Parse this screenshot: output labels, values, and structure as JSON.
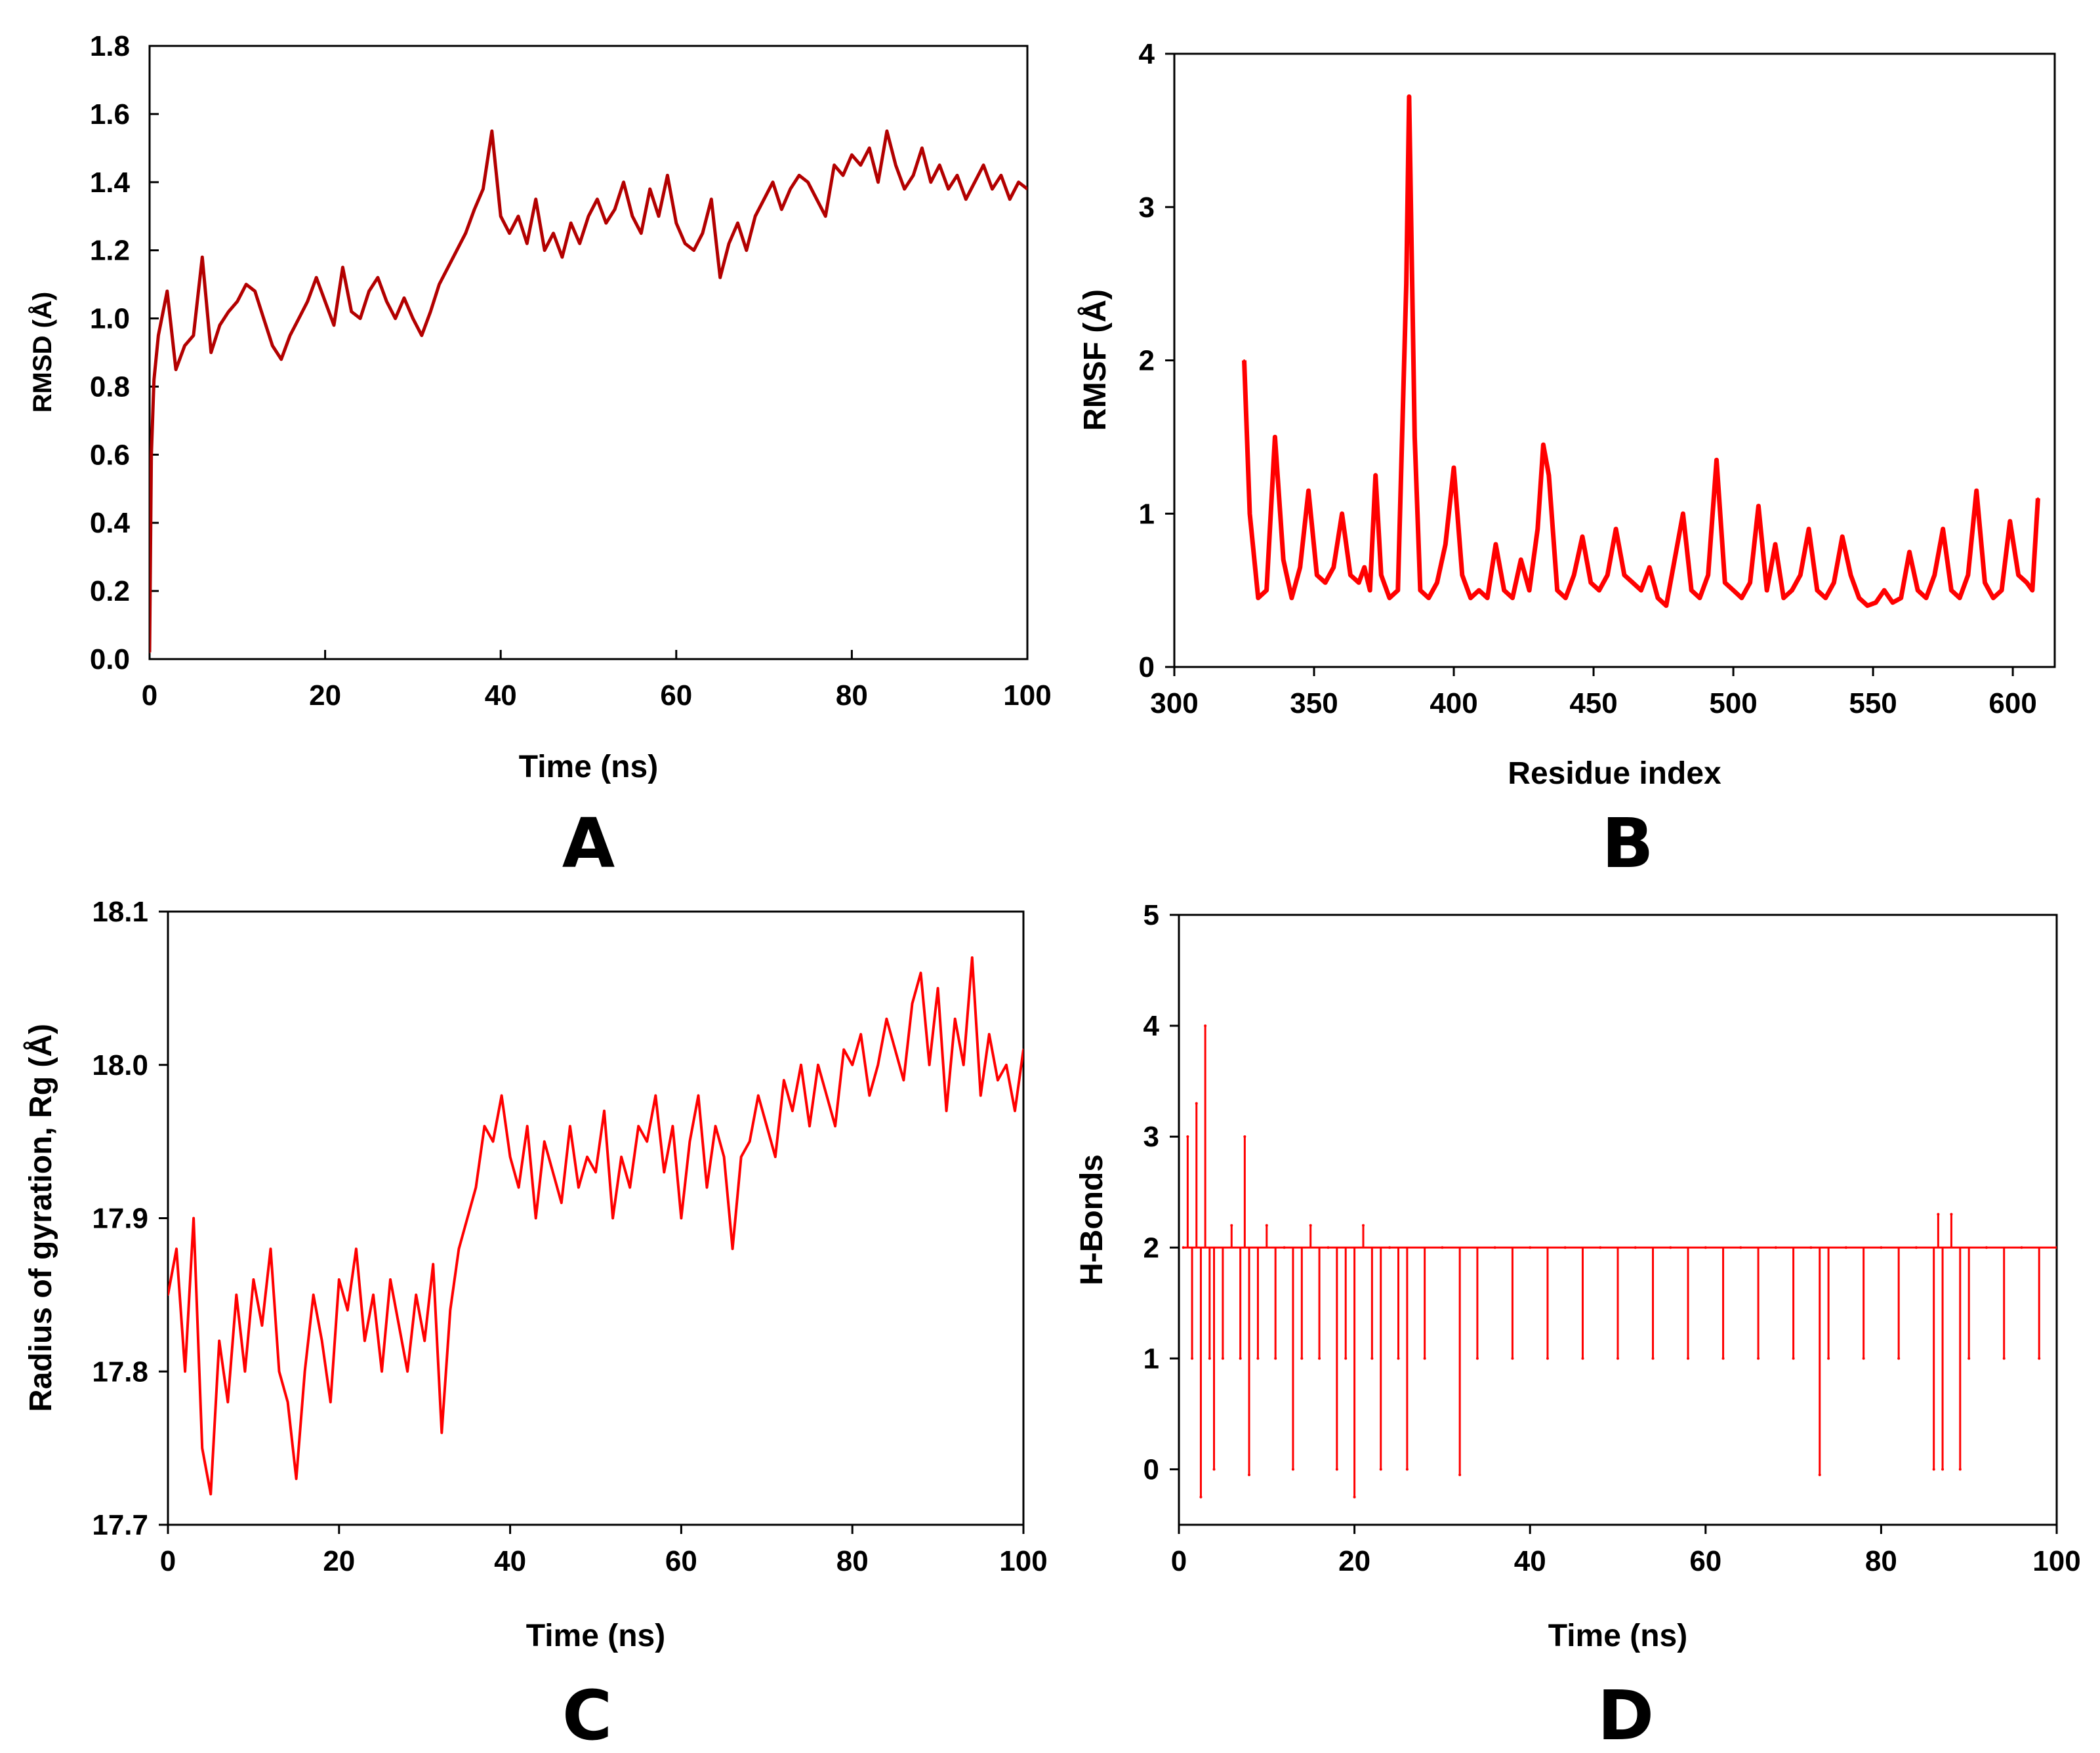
{
  "figure": {
    "panels": [
      "A",
      "B",
      "C",
      "D"
    ],
    "colors": {
      "rmsd": "#b30000",
      "series": "#ff0000",
      "axis": "#000000",
      "background": "#ffffff"
    }
  },
  "chart_data": [
    {
      "panel": "A",
      "type": "line",
      "title": "",
      "xlabel": "Time (ns)",
      "ylabel": "RMSD (Å)",
      "xlim": [
        0,
        100
      ],
      "ylim": [
        0.0,
        1.8
      ],
      "xticks": [
        "0",
        "20",
        "40",
        "60",
        "80",
        "100"
      ],
      "yticks": [
        "0.0",
        "0.2",
        "0.4",
        "0.6",
        "0.8",
        "1.0",
        "1.2",
        "1.4",
        "1.6",
        "1.8"
      ],
      "grid": false,
      "series": [
        {
          "name": "RMSD",
          "color": "#b30000",
          "x": [
            0,
            0.2,
            0.5,
            1,
            2,
            3,
            4,
            5,
            6,
            7,
            8,
            9,
            10,
            11,
            12,
            13,
            14,
            15,
            16,
            17,
            18,
            19,
            20,
            21,
            22,
            23,
            24,
            25,
            26,
            27,
            28,
            29,
            30,
            31,
            32,
            33,
            34,
            35,
            36,
            37,
            38,
            39,
            40,
            41,
            42,
            43,
            44,
            45,
            46,
            47,
            48,
            49,
            50,
            51,
            52,
            53,
            54,
            55,
            56,
            57,
            58,
            59,
            60,
            61,
            62,
            63,
            64,
            65,
            66,
            67,
            68,
            69,
            70,
            71,
            72,
            73,
            74,
            75,
            76,
            77,
            78,
            79,
            80,
            81,
            82,
            83,
            84,
            85,
            86,
            87,
            88,
            89,
            90,
            91,
            92,
            93,
            94,
            95,
            96,
            97,
            98,
            99,
            100
          ],
          "values": [
            0.02,
            0.6,
            0.82,
            0.95,
            1.08,
            0.85,
            0.92,
            0.95,
            1.18,
            0.9,
            0.98,
            1.02,
            1.05,
            1.1,
            1.08,
            1.0,
            0.92,
            0.88,
            0.95,
            1.0,
            1.05,
            1.12,
            1.05,
            0.98,
            1.15,
            1.02,
            1.0,
            1.08,
            1.12,
            1.05,
            1.0,
            1.06,
            1.0,
            0.95,
            1.02,
            1.1,
            1.15,
            1.2,
            1.25,
            1.32,
            1.38,
            1.55,
            1.3,
            1.25,
            1.3,
            1.22,
            1.35,
            1.2,
            1.25,
            1.18,
            1.28,
            1.22,
            1.3,
            1.35,
            1.28,
            1.32,
            1.4,
            1.3,
            1.25,
            1.38,
            1.3,
            1.42,
            1.28,
            1.22,
            1.2,
            1.25,
            1.35,
            1.12,
            1.22,
            1.28,
            1.2,
            1.3,
            1.35,
            1.4,
            1.32,
            1.38,
            1.42,
            1.4,
            1.35,
            1.3,
            1.45,
            1.42,
            1.48,
            1.45,
            1.5,
            1.4,
            1.55,
            1.45,
            1.38,
            1.42,
            1.5,
            1.4,
            1.45,
            1.38,
            1.42,
            1.35,
            1.4,
            1.45,
            1.38,
            1.42,
            1.35,
            1.4,
            1.38
          ]
        }
      ]
    },
    {
      "panel": "B",
      "type": "line",
      "title": "",
      "xlabel": "Residue index",
      "ylabel": "RMSF (Å)",
      "xlim": [
        300,
        615
      ],
      "ylim": [
        0,
        4
      ],
      "xticks": [
        "300",
        "350",
        "400",
        "450",
        "500",
        "550",
        "600"
      ],
      "yticks": [
        "0",
        "1",
        "2",
        "3",
        "4"
      ],
      "grid": false,
      "series": [
        {
          "name": "RMSF",
          "color": "#ff0000",
          "x": [
            325,
            327,
            330,
            333,
            336,
            339,
            342,
            345,
            348,
            351,
            354,
            357,
            360,
            363,
            366,
            368,
            370,
            372,
            374,
            377,
            380,
            383,
            384,
            386,
            388,
            391,
            394,
            397,
            400,
            403,
            406,
            409,
            412,
            415,
            418,
            421,
            424,
            427,
            430,
            432,
            434,
            437,
            440,
            443,
            446,
            449,
            452,
            455,
            458,
            461,
            464,
            467,
            470,
            473,
            476,
            479,
            482,
            485,
            488,
            491,
            494,
            497,
            500,
            503,
            506,
            509,
            512,
            515,
            518,
            521,
            524,
            527,
            530,
            533,
            536,
            539,
            542,
            545,
            548,
            551,
            554,
            557,
            560,
            563,
            566,
            569,
            572,
            575,
            578,
            581,
            584,
            587,
            590,
            593,
            596,
            599,
            602,
            605,
            607,
            609
          ],
          "values": [
            2.0,
            1.0,
            0.45,
            0.5,
            1.5,
            0.7,
            0.45,
            0.65,
            1.15,
            0.6,
            0.55,
            0.65,
            1.0,
            0.6,
            0.55,
            0.65,
            0.5,
            1.25,
            0.6,
            0.45,
            0.5,
            2.5,
            3.72,
            1.5,
            0.5,
            0.45,
            0.55,
            0.8,
            1.3,
            0.6,
            0.45,
            0.5,
            0.45,
            0.8,
            0.5,
            0.45,
            0.7,
            0.5,
            0.9,
            1.45,
            1.25,
            0.5,
            0.45,
            0.6,
            0.85,
            0.55,
            0.5,
            0.6,
            0.9,
            0.6,
            0.55,
            0.5,
            0.65,
            0.45,
            0.4,
            0.7,
            1.0,
            0.5,
            0.45,
            0.6,
            1.35,
            0.55,
            0.5,
            0.45,
            0.55,
            1.05,
            0.5,
            0.8,
            0.45,
            0.5,
            0.6,
            0.9,
            0.5,
            0.45,
            0.55,
            0.85,
            0.6,
            0.45,
            0.4,
            0.42,
            0.5,
            0.42,
            0.45,
            0.75,
            0.5,
            0.45,
            0.6,
            0.9,
            0.5,
            0.45,
            0.6,
            1.15,
            0.55,
            0.45,
            0.5,
            0.95,
            0.6,
            0.55,
            0.5,
            1.1
          ]
        }
      ]
    },
    {
      "panel": "C",
      "type": "line",
      "title": "",
      "xlabel": "Time (ns)",
      "ylabel": "Radius of gyration, Rg (Å)",
      "xlim": [
        0,
        100
      ],
      "ylim": [
        17.7,
        18.1
      ],
      "xticks": [
        "0",
        "20",
        "40",
        "60",
        "80",
        "100"
      ],
      "yticks": [
        "17.7",
        "17.8",
        "17.9",
        "18.0",
        "18.1"
      ],
      "grid": false,
      "series": [
        {
          "name": "Rg",
          "color": "#ff0000",
          "x": [
            0,
            1,
            2,
            3,
            4,
            5,
            6,
            7,
            8,
            9,
            10,
            11,
            12,
            13,
            14,
            15,
            16,
            17,
            18,
            19,
            20,
            21,
            22,
            23,
            24,
            25,
            26,
            27,
            28,
            29,
            30,
            31,
            32,
            33,
            34,
            35,
            36,
            37,
            38,
            39,
            40,
            41,
            42,
            43,
            44,
            45,
            46,
            47,
            48,
            49,
            50,
            51,
            52,
            53,
            54,
            55,
            56,
            57,
            58,
            59,
            60,
            61,
            62,
            63,
            64,
            65,
            66,
            67,
            68,
            69,
            70,
            71,
            72,
            73,
            74,
            75,
            76,
            77,
            78,
            79,
            80,
            81,
            82,
            83,
            84,
            85,
            86,
            87,
            88,
            89,
            90,
            91,
            92,
            93,
            94,
            95,
            96,
            97,
            98,
            99,
            100
          ],
          "values": [
            17.85,
            17.88,
            17.8,
            17.9,
            17.75,
            17.72,
            17.82,
            17.78,
            17.85,
            17.8,
            17.86,
            17.83,
            17.88,
            17.8,
            17.78,
            17.73,
            17.8,
            17.85,
            17.82,
            17.78,
            17.86,
            17.84,
            17.88,
            17.82,
            17.85,
            17.8,
            17.86,
            17.83,
            17.8,
            17.85,
            17.82,
            17.87,
            17.76,
            17.84,
            17.88,
            17.9,
            17.92,
            17.96,
            17.95,
            17.98,
            17.94,
            17.92,
            17.96,
            17.9,
            17.95,
            17.93,
            17.91,
            17.96,
            17.92,
            17.94,
            17.93,
            17.97,
            17.9,
            17.94,
            17.92,
            17.96,
            17.95,
            17.98,
            17.93,
            17.96,
            17.9,
            17.95,
            17.98,
            17.92,
            17.96,
            17.94,
            17.88,
            17.94,
            17.95,
            17.98,
            17.96,
            17.94,
            17.99,
            17.97,
            18.0,
            17.96,
            18.0,
            17.98,
            17.96,
            18.01,
            18.0,
            18.02,
            17.98,
            18.0,
            18.03,
            18.01,
            17.99,
            18.04,
            18.06,
            18.0,
            18.05,
            17.97,
            18.03,
            18.0,
            18.07,
            17.98,
            18.02,
            17.99,
            18.0,
            17.97,
            18.01
          ]
        }
      ]
    },
    {
      "panel": "D",
      "type": "line",
      "title": "",
      "xlabel": "Time (ns)",
      "ylabel": "H-Bonds",
      "xlim": [
        0,
        100
      ],
      "ylim": [
        -0.5,
        5
      ],
      "xticks": [
        "0",
        "20",
        "40",
        "60",
        "80",
        "100"
      ],
      "yticks": [
        "0",
        "1",
        "2",
        "3",
        "4",
        "5"
      ],
      "grid": false,
      "baseline": 2,
      "series": [
        {
          "name": "H-Bonds",
          "color": "#ff0000",
          "x": [
            0.5,
            1,
            1.5,
            2,
            2.5,
            3,
            3.5,
            4,
            5,
            6,
            7,
            7.5,
            8,
            9,
            10,
            11,
            12,
            13,
            14,
            15,
            16,
            17,
            18,
            19,
            20,
            21,
            22,
            23,
            24,
            25,
            26,
            28,
            30,
            32,
            34,
            36,
            38,
            40,
            42,
            44,
            46,
            48,
            50,
            52,
            54,
            56,
            58,
            60,
            62,
            64,
            66,
            68,
            70,
            72,
            73,
            74,
            76,
            78,
            80,
            82,
            84,
            86,
            86.5,
            87,
            88,
            89,
            90,
            92,
            94,
            96,
            98,
            100
          ],
          "values": [
            2,
            3,
            1,
            3.3,
            -0.25,
            4,
            1,
            0,
            1,
            2.2,
            1,
            3,
            -0.05,
            1,
            2.2,
            1,
            2,
            0,
            1,
            2.2,
            1,
            2,
            0,
            1,
            -0.25,
            2.2,
            1,
            0,
            2,
            1,
            0,
            1,
            2,
            -0.05,
            1,
            2,
            1,
            2,
            1,
            2,
            1,
            2,
            1,
            2,
            1,
            2,
            1,
            2,
            1,
            2,
            1,
            2,
            1,
            2,
            -0.05,
            1,
            2,
            1,
            2,
            1,
            2,
            0,
            2.3,
            0,
            2.3,
            0,
            1,
            2,
            1,
            2,
            1,
            2
          ]
        }
      ]
    }
  ]
}
